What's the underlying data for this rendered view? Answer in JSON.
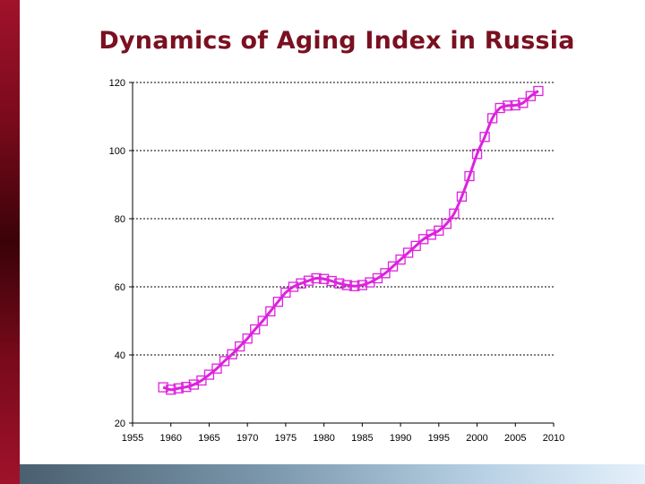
{
  "slide": {
    "title": "Dynamics of Aging Index in Russia"
  },
  "colors": {
    "series": "#dd22dd",
    "title": "#7a1020"
  },
  "chart_data": {
    "type": "line",
    "title": "Dynamics of Aging Index in Russia",
    "xlabel": "",
    "ylabel": "",
    "xlim": [
      1955,
      2010
    ],
    "ylim": [
      20,
      120
    ],
    "x_ticks": [
      1955,
      1960,
      1965,
      1970,
      1975,
      1980,
      1985,
      1990,
      1995,
      2000,
      2005,
      2010
    ],
    "y_ticks": [
      20,
      40,
      60,
      80,
      100,
      120
    ],
    "grid": "horizontal dashed",
    "legend": "none",
    "series": [
      {
        "marker": "square",
        "x": [
          1959,
          1960,
          1961,
          1962,
          1963,
          1964,
          1965,
          1966,
          1967,
          1968,
          1969,
          1970,
          1971,
          1972,
          1973,
          1974,
          1975,
          1976,
          1977,
          1978,
          1979,
          1980,
          1981,
          1982,
          1983,
          1984,
          1985,
          1986,
          1987,
          1988,
          1989,
          1990,
          1991,
          1992,
          1993,
          1994,
          1995,
          1996,
          1997,
          1998,
          1999,
          2000,
          2001,
          2002,
          2003,
          2004,
          2005,
          2006,
          2007,
          2008
        ],
        "values": [
          30.5,
          29.8,
          30.2,
          30.6,
          31.3,
          32.5,
          34.2,
          36.0,
          38.2,
          40.2,
          42.5,
          44.8,
          47.5,
          50.0,
          52.8,
          55.6,
          58.3,
          60.0,
          61.0,
          61.8,
          62.5,
          62.3,
          61.7,
          61.0,
          60.5,
          60.2,
          60.5,
          61.3,
          62.5,
          64.0,
          66.0,
          68.0,
          70.0,
          72.0,
          74.0,
          75.3,
          76.5,
          78.5,
          81.5,
          86.5,
          92.5,
          99.0,
          104.0,
          109.5,
          112.5,
          113.2,
          113.3,
          114.0,
          116.0,
          117.5
        ]
      }
    ]
  }
}
